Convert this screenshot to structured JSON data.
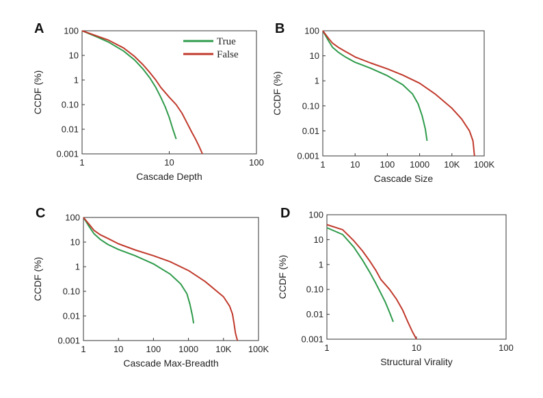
{
  "colors": {
    "true": "#2e9a4a",
    "false": "#c0392b"
  },
  "legend": [
    {
      "label": "True",
      "series_key": "true"
    },
    {
      "label": "False",
      "series_key": "false"
    }
  ],
  "chart_data": [
    {
      "panel": "A",
      "type": "line",
      "xscale": "log",
      "yscale": "log",
      "xlabel": "Cascade Depth",
      "ylabel": "CCDF (%)",
      "xlim": [
        1,
        100
      ],
      "ylim": [
        0.001,
        100
      ],
      "xticks": [
        1,
        10,
        100
      ],
      "xtick_labels": [
        "1",
        "10",
        "100"
      ],
      "yticks": [
        100,
        10,
        1,
        0.1,
        0.01,
        0.001
      ],
      "ytick_labels": [
        "100",
        "10",
        "1",
        "0.10",
        "0.01",
        "0.001"
      ],
      "has_legend": true,
      "legend_position": "top-right",
      "series": [
        {
          "name": "True",
          "color_key": "true",
          "x": [
            1,
            1.5,
            2,
            3,
            4,
            5,
            6,
            7,
            8,
            9,
            10,
            11,
            12
          ],
          "y": [
            100,
            55,
            35,
            15,
            6.5,
            2.8,
            1.2,
            0.5,
            0.2,
            0.08,
            0.03,
            0.01,
            0.004
          ]
        },
        {
          "name": "False",
          "color_key": "false",
          "x": [
            1,
            1.5,
            2,
            3,
            4,
            5,
            6,
            7,
            8,
            10,
            12,
            14,
            16,
            18,
            20,
            22,
            24
          ],
          "y": [
            100,
            60,
            42,
            20,
            9,
            4.2,
            2,
            1,
            0.5,
            0.2,
            0.1,
            0.045,
            0.018,
            0.008,
            0.004,
            0.002,
            0.001
          ]
        }
      ]
    },
    {
      "panel": "B",
      "type": "line",
      "xscale": "log",
      "yscale": "log",
      "xlabel": "Cascade Size",
      "ylabel": "CCDF (%)",
      "xlim": [
        1,
        100000
      ],
      "ylim": [
        0.001,
        100
      ],
      "xticks": [
        1,
        10,
        100,
        1000,
        10000,
        100000
      ],
      "xtick_labels": [
        "1",
        "10",
        "100",
        "1000",
        "10K",
        "100K"
      ],
      "yticks": [
        100,
        10,
        1,
        0.1,
        0.01,
        0.001
      ],
      "ytick_labels": [
        "100",
        "10",
        "1",
        "0.10",
        "0.01",
        "0.001"
      ],
      "has_legend": false,
      "series": [
        {
          "name": "True",
          "color_key": "true",
          "x": [
            1,
            1.5,
            2,
            3,
            5,
            10,
            30,
            100,
            300,
            600,
            900,
            1200,
            1500,
            1700
          ],
          "y": [
            100,
            40,
            22,
            14,
            9,
            5.5,
            3.2,
            1.6,
            0.7,
            0.3,
            0.12,
            0.04,
            0.012,
            0.004
          ]
        },
        {
          "name": "False",
          "color_key": "false",
          "x": [
            1,
            1.5,
            2,
            3,
            5,
            10,
            30,
            100,
            300,
            1000,
            3000,
            10000,
            20000,
            35000,
            45000,
            50000
          ],
          "y": [
            100,
            50,
            32,
            22,
            15,
            9,
            5.2,
            3,
            1.7,
            0.8,
            0.3,
            0.08,
            0.03,
            0.01,
            0.004,
            0.001
          ]
        }
      ]
    },
    {
      "panel": "C",
      "type": "line",
      "xscale": "log",
      "yscale": "log",
      "xlabel": "Cascade Max-Breadth",
      "ylabel": "CCDF (%)",
      "xlim": [
        1,
        100000
      ],
      "ylim": [
        0.001,
        100
      ],
      "xticks": [
        1,
        10,
        100,
        1000,
        10000,
        100000
      ],
      "xtick_labels": [
        "1",
        "10",
        "100",
        "1000",
        "10K",
        "100K"
      ],
      "yticks": [
        100,
        10,
        1,
        0.1,
        0.01,
        0.001
      ],
      "ytick_labels": [
        "100",
        "10",
        "1",
        "0.10",
        "0.01",
        "0.001"
      ],
      "has_legend": false,
      "series": [
        {
          "name": "True",
          "color_key": "true",
          "x": [
            1,
            1.5,
            2,
            3,
            5,
            10,
            30,
            100,
            300,
            600,
            900,
            1100,
            1300,
            1400
          ],
          "y": [
            100,
            40,
            22,
            13,
            8,
            5,
            2.8,
            1.3,
            0.5,
            0.2,
            0.08,
            0.03,
            0.01,
            0.005
          ]
        },
        {
          "name": "False",
          "color_key": "false",
          "x": [
            1,
            1.5,
            2,
            3,
            5,
            10,
            30,
            100,
            300,
            1000,
            3000,
            10000,
            15000,
            18000,
            20000,
            22000,
            25000
          ],
          "y": [
            100,
            50,
            30,
            20,
            14,
            8.5,
            4.8,
            2.8,
            1.6,
            0.7,
            0.25,
            0.06,
            0.025,
            0.012,
            0.005,
            0.002,
            0.001
          ]
        }
      ]
    },
    {
      "panel": "D",
      "type": "line",
      "xscale": "log",
      "yscale": "log",
      "xlabel": "Structural Virality",
      "ylabel": "CCDF (%)",
      "xlim": [
        1,
        100
      ],
      "ylim": [
        0.001,
        100
      ],
      "xticks": [
        1,
        10,
        100
      ],
      "xtick_labels": [
        "1",
        "10",
        "100"
      ],
      "yticks": [
        100,
        10,
        1,
        0.1,
        0.01,
        0.001
      ],
      "ytick_labels": [
        "100",
        "10",
        "1",
        "0.10",
        "0.01",
        "0.001"
      ],
      "has_legend": false,
      "series": [
        {
          "name": "True",
          "color_key": "true",
          "x": [
            1,
            1.5,
            2,
            2.5,
            3,
            3.5,
            4,
            4.5,
            5,
            5.5
          ],
          "y": [
            30,
            16,
            5,
            1.5,
            0.5,
            0.18,
            0.07,
            0.03,
            0.012,
            0.005
          ]
        },
        {
          "name": "False",
          "color_key": "false",
          "x": [
            1,
            1.5,
            2,
            2.5,
            3,
            3.5,
            4,
            5,
            6,
            7,
            8,
            9,
            10
          ],
          "y": [
            40,
            25,
            9,
            3.5,
            1.4,
            0.6,
            0.25,
            0.1,
            0.04,
            0.015,
            0.005,
            0.002,
            0.001
          ]
        }
      ]
    }
  ]
}
